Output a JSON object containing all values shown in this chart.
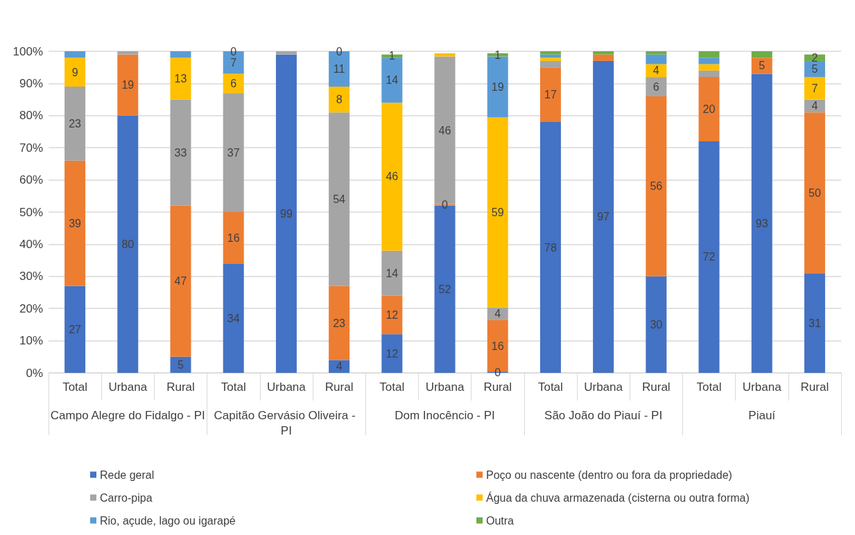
{
  "chart_data": {
    "type": "bar",
    "stacked": true,
    "grid": "y",
    "legend": "bottom",
    "categories": [
      "Total",
      "Urbana",
      "Rural",
      "Total",
      "Urbana",
      "Rural",
      "Total",
      "Urbana",
      "Rural",
      "Total",
      "Urbana",
      "Rural",
      "Total",
      "Urbana",
      "Rural"
    ],
    "annotations": [
      "Campo Alegre do Fidalgo - PI",
      "Capitão Gervásio Oliveira - PI",
      "Dom Inocêncio - PI",
      "São João do Piauí - PI",
      "Piauí"
    ],
    "ylim": [
      0,
      100
    ],
    "yticks": [
      {
        "value": 0,
        "label": "0%"
      },
      {
        "value": 10,
        "label": "10%"
      },
      {
        "value": 20,
        "label": "20%"
      },
      {
        "value": 30,
        "label": "30%"
      },
      {
        "value": 40,
        "label": "40%"
      },
      {
        "value": 50,
        "label": "50%"
      },
      {
        "value": 60,
        "label": "60%"
      },
      {
        "value": 70,
        "label": "70%"
      },
      {
        "value": 80,
        "label": "80%"
      },
      {
        "value": 90,
        "label": "90%"
      },
      {
        "value": 100,
        "label": "100%"
      }
    ],
    "series": [
      {
        "name": "Rede geral",
        "color": "#4472c4",
        "values": [
          27,
          80,
          5,
          34,
          99,
          4,
          12,
          52,
          0.4,
          78,
          97,
          30,
          72,
          93,
          31
        ],
        "value_labels": [
          "27",
          "80",
          "5",
          "34",
          "99",
          "4",
          "12",
          "52",
          "0",
          "78",
          "97",
          "30",
          "72",
          "93",
          "31"
        ]
      },
      {
        "name": "Poço ou nascente (dentro ou fora da propriedade)",
        "color": "#ed7d31",
        "values": [
          39,
          19,
          47,
          16,
          0,
          23,
          12,
          0.4,
          16,
          17,
          2,
          56,
          20,
          5,
          50
        ],
        "value_labels": [
          "39",
          "19",
          "47",
          "16",
          null,
          "23",
          "12",
          "0",
          "16",
          "17",
          null,
          "56",
          "20",
          "5",
          "50"
        ]
      },
      {
        "name": "Carro-pipa",
        "color": "#a5a5a5",
        "values": [
          23,
          1,
          33,
          37,
          1,
          54,
          14,
          46,
          4,
          2,
          0,
          6,
          2,
          0,
          4
        ],
        "value_labels": [
          "23",
          null,
          "33",
          "37",
          null,
          "54",
          "14",
          "46",
          "4",
          null,
          null,
          "6",
          null,
          null,
          "4"
        ]
      },
      {
        "name": "Água da chuva armazenada (cisterna ou outra forma)",
        "color": "#ffc000",
        "values": [
          9,
          0,
          13,
          6,
          0,
          8,
          46,
          1,
          59,
          1,
          0,
          4,
          2,
          0,
          7
        ],
        "value_labels": [
          "9",
          null,
          "13",
          "6",
          null,
          "8",
          "46",
          null,
          "59",
          null,
          null,
          "4",
          null,
          null,
          "7"
        ]
      },
      {
        "name": "Rio, açude, lago ou igarapé",
        "color": "#5b9bd5",
        "values": [
          2,
          0,
          2,
          7,
          0,
          11,
          14,
          0,
          19,
          1,
          0,
          3,
          2,
          0,
          5
        ],
        "value_labels": [
          null,
          null,
          null,
          "7",
          null,
          "11",
          "14",
          null,
          "19",
          null,
          null,
          null,
          null,
          null,
          "5"
        ]
      },
      {
        "name": "Outra",
        "color": "#70ad47",
        "values": [
          0,
          0,
          0,
          0,
          0,
          0,
          1,
          0,
          1,
          1,
          1,
          1,
          2,
          2,
          2
        ],
        "value_labels": [
          null,
          null,
          null,
          "0",
          null,
          "0",
          "1",
          null,
          "1",
          null,
          null,
          null,
          null,
          null,
          "2"
        ]
      }
    ]
  }
}
